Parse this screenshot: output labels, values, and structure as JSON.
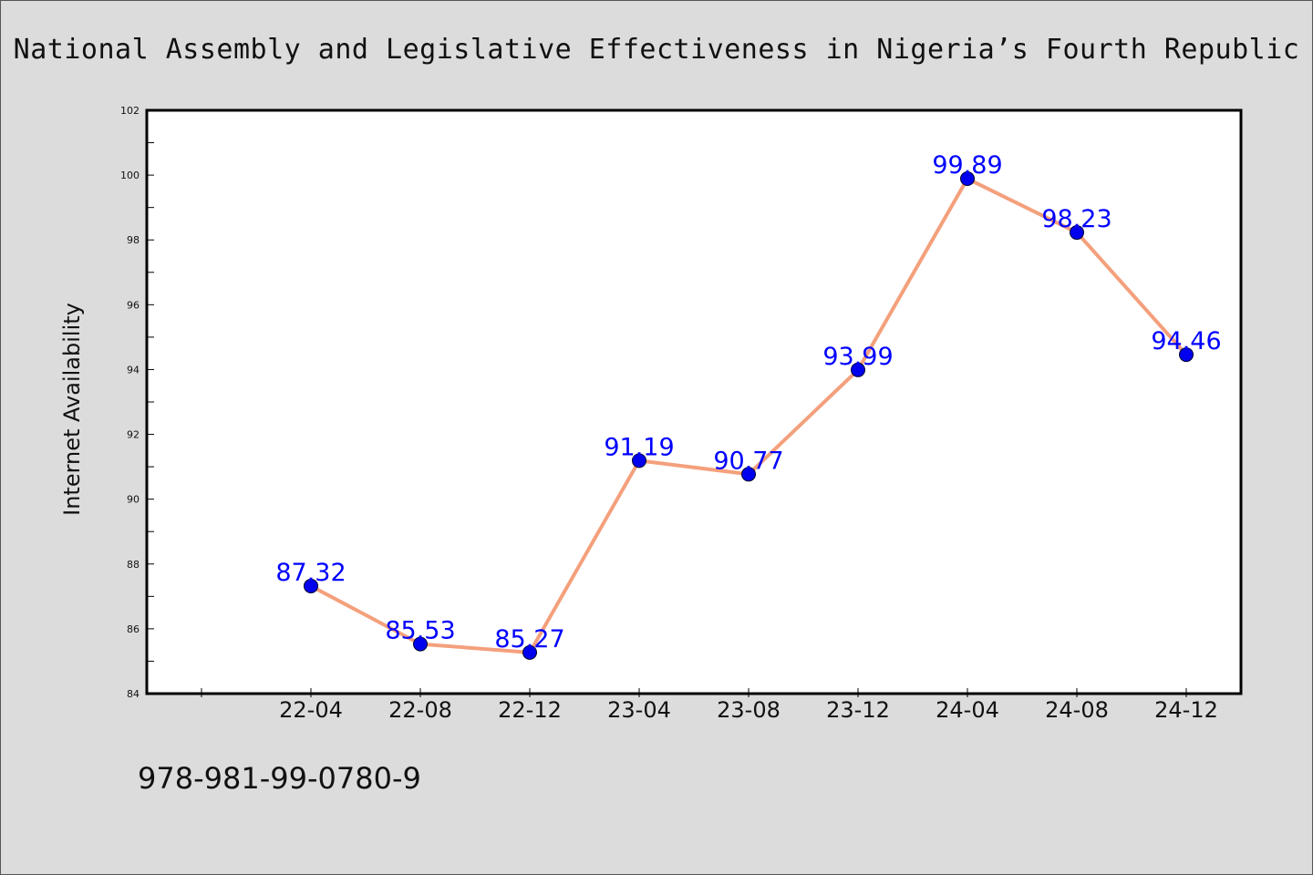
{
  "chart_data": {
    "type": "line",
    "title": "National Assembly and Legislative Effectiveness in Nigeria’s Fourth Republic",
    "xlabel": "",
    "ylabel": "Internet Availability",
    "categories": [
      "22-04",
      "22-08",
      "22-12",
      "23-04",
      "23-08",
      "23-12",
      "24-04",
      "24-08",
      "24-12"
    ],
    "series": [
      {
        "values": [
          87.32,
          85.53,
          85.27,
          91.19,
          90.77,
          93.99,
          99.89,
          98.23,
          94.46
        ],
        "data_labels": [
          "87.32",
          "85.53",
          "85.27",
          "91.19",
          "90.77",
          "93.99",
          "99.89",
          "98.23",
          "94.46"
        ]
      }
    ],
    "ylim": [
      84,
      102
    ],
    "yticks": [
      "84",
      "86",
      "88",
      "90",
      "92",
      "94",
      "96",
      "98",
      "100",
      "102"
    ],
    "grid": false,
    "legend": "none",
    "colors": {
      "line": "#f4a07c",
      "marker": "#0000ee",
      "data_label": "#0000ff",
      "plot_background": "#ffffff",
      "page_background": "#dcdcdc"
    }
  },
  "footer": {
    "code": "978-981-99-0780-9"
  }
}
